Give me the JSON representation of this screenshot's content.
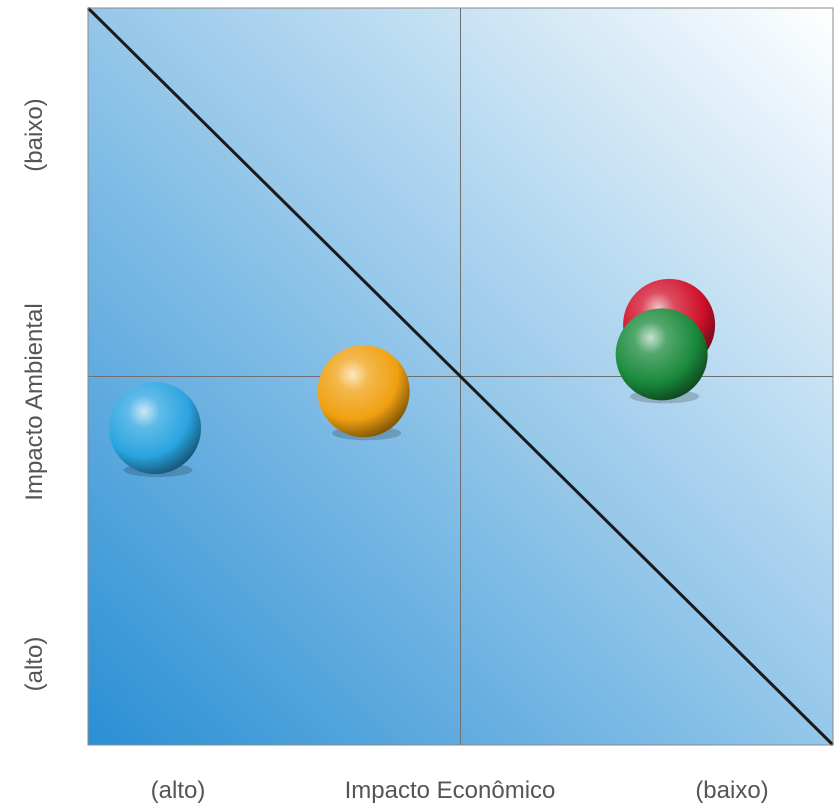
{
  "chart_data": {
    "type": "scatter",
    "title": "",
    "xlabel": "Impacto Econômico",
    "ylabel": "Impacto Ambiental",
    "x_end_labels": {
      "left": "(alto)",
      "right": "(baixo)"
    },
    "y_end_labels": {
      "bottom": "(alto)",
      "top": "(baixo)"
    },
    "xlim": [
      0,
      1
    ],
    "ylim": [
      0,
      1
    ],
    "grid": false,
    "quadrant_lines": {
      "x": 0.5,
      "y": 0.5
    },
    "diagonal": {
      "from": [
        0,
        1
      ],
      "to": [
        1,
        0
      ]
    },
    "background_gradient": {
      "from": "#2a8fd4",
      "to": "#ffffff"
    },
    "points": [
      {
        "x": 0.09,
        "y": 0.43,
        "color": "#2aa4e0"
      },
      {
        "x": 0.37,
        "y": 0.48,
        "color": "#f0a010"
      },
      {
        "x": 0.78,
        "y": 0.57,
        "color": "#d0102a"
      },
      {
        "x": 0.77,
        "y": 0.53,
        "color": "#1a8a3c"
      }
    ]
  }
}
